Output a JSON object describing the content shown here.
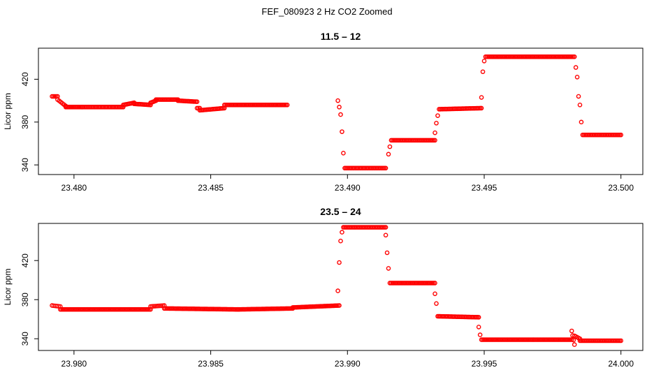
{
  "figure": {
    "title": "FEF_080923  2 Hz CO2 Zoomed"
  },
  "colors": {
    "points": "#ff0000",
    "axes": "#000000",
    "background": "#ffffff"
  },
  "chart_data": [
    {
      "type": "scatter",
      "title": "11.5 – 12",
      "xlabel": "",
      "ylabel": "Licor ppm",
      "xlim": [
        23.4787,
        23.5008
      ],
      "ylim": [
        331,
        449
      ],
      "xticks": [
        "23.480",
        "23.485",
        "23.490",
        "23.495",
        "23.500"
      ],
      "xtick_values": [
        23.48,
        23.485,
        23.49,
        23.495,
        23.5
      ],
      "yticks": [
        "340",
        "380",
        "420"
      ],
      "ytick_values": [
        340,
        380,
        420
      ],
      "grid": false,
      "legend": "none",
      "marker": "open-circle",
      "segments": [
        {
          "x0": 23.4792,
          "x1": 23.4794,
          "y0": 404,
          "y1": 404,
          "n": 5
        },
        {
          "x0": 23.4794,
          "x1": 23.4797,
          "y0": 401,
          "y1": 395,
          "n": 6
        },
        {
          "x0": 23.4797,
          "x1": 23.4803,
          "y0": 394,
          "y1": 394,
          "n": 16
        },
        {
          "x0": 23.4803,
          "x1": 23.4818,
          "y0": 394,
          "y1": 394,
          "n": 36
        },
        {
          "x0": 23.4818,
          "x1": 23.4822,
          "y0": 396,
          "y1": 398,
          "n": 10
        },
        {
          "x0": 23.4822,
          "x1": 23.4828,
          "y0": 397,
          "y1": 396,
          "n": 14
        },
        {
          "x0": 23.4828,
          "x1": 23.483,
          "y0": 398,
          "y1": 400,
          "n": 6
        },
        {
          "x0": 23.483,
          "x1": 23.4838,
          "y0": 401,
          "y1": 401,
          "n": 18
        },
        {
          "x0": 23.4838,
          "x1": 23.4845,
          "y0": 400,
          "y1": 399,
          "n": 16
        },
        {
          "x0": 23.4845,
          "x1": 23.4846,
          "y0": 393,
          "y1": 393,
          "n": 3
        },
        {
          "x0": 23.4846,
          "x1": 23.4855,
          "y0": 391,
          "y1": 393,
          "n": 22
        },
        {
          "x0": 23.4855,
          "x1": 23.4878,
          "y0": 396,
          "y1": 396,
          "n": 50
        },
        {
          "x0": 23.48965,
          "x1": 23.48965,
          "y0": 400,
          "y1": 400,
          "n": 1
        },
        {
          "x0": 23.4897,
          "x1": 23.4897,
          "y0": 394,
          "y1": 394,
          "n": 1
        },
        {
          "x0": 23.48975,
          "x1": 23.48975,
          "y0": 387,
          "y1": 387,
          "n": 1
        },
        {
          "x0": 23.4898,
          "x1": 23.4898,
          "y0": 371,
          "y1": 371,
          "n": 1
        },
        {
          "x0": 23.48985,
          "x1": 23.48985,
          "y0": 351,
          "y1": 351,
          "n": 1
        },
        {
          "x0": 23.4899,
          "x1": 23.4914,
          "y0": 337,
          "y1": 337,
          "n": 36
        },
        {
          "x0": 23.4915,
          "x1": 23.4915,
          "y0": 350,
          "y1": 350,
          "n": 1
        },
        {
          "x0": 23.49155,
          "x1": 23.49155,
          "y0": 357,
          "y1": 357,
          "n": 1
        },
        {
          "x0": 23.4916,
          "x1": 23.4932,
          "y0": 363,
          "y1": 363,
          "n": 36
        },
        {
          "x0": 23.4932,
          "x1": 23.4932,
          "y0": 370,
          "y1": 370,
          "n": 1
        },
        {
          "x0": 23.49325,
          "x1": 23.49325,
          "y0": 379,
          "y1": 379,
          "n": 1
        },
        {
          "x0": 23.4933,
          "x1": 23.4933,
          "y0": 386,
          "y1": 386,
          "n": 1
        },
        {
          "x0": 23.49335,
          "x1": 23.4949,
          "y0": 392,
          "y1": 393,
          "n": 36
        },
        {
          "x0": 23.4949,
          "x1": 23.4949,
          "y0": 403,
          "y1": 403,
          "n": 1
        },
        {
          "x0": 23.49495,
          "x1": 23.49495,
          "y0": 427,
          "y1": 427,
          "n": 1
        },
        {
          "x0": 23.495,
          "x1": 23.495,
          "y0": 437,
          "y1": 437,
          "n": 1
        },
        {
          "x0": 23.49505,
          "x1": 23.4983,
          "y0": 441,
          "y1": 441,
          "n": 70
        },
        {
          "x0": 23.49835,
          "x1": 23.49835,
          "y0": 431,
          "y1": 431,
          "n": 1
        },
        {
          "x0": 23.4984,
          "x1": 23.4984,
          "y0": 422,
          "y1": 422,
          "n": 1
        },
        {
          "x0": 23.49845,
          "x1": 23.49845,
          "y0": 404,
          "y1": 404,
          "n": 1
        },
        {
          "x0": 23.4985,
          "x1": 23.4985,
          "y0": 396,
          "y1": 396,
          "n": 1
        },
        {
          "x0": 23.49855,
          "x1": 23.49855,
          "y0": 380,
          "y1": 380,
          "n": 1
        },
        {
          "x0": 23.4986,
          "x1": 23.5,
          "y0": 368,
          "y1": 368,
          "n": 32
        }
      ]
    },
    {
      "type": "scatter",
      "title": "23.5 – 24",
      "xlabel": "",
      "ylabel": "Licor ppm",
      "xlim": [
        23.9787,
        24.0008
      ],
      "ylim": [
        328,
        458
      ],
      "xticks": [
        "23.980",
        "23.985",
        "23.990",
        "23.995",
        "24.000"
      ],
      "xtick_values": [
        23.98,
        23.985,
        23.99,
        23.995,
        24.0
      ],
      "yticks": [
        "340",
        "380",
        "420"
      ],
      "ytick_values": [
        340,
        380,
        420
      ],
      "grid": false,
      "legend": "none",
      "marker": "open-circle",
      "segments": [
        {
          "x0": 23.9792,
          "x1": 23.9795,
          "y0": 374,
          "y1": 373,
          "n": 6
        },
        {
          "x0": 23.9795,
          "x1": 23.9828,
          "y0": 370,
          "y1": 370,
          "n": 70
        },
        {
          "x0": 23.9828,
          "x1": 23.9833,
          "y0": 373,
          "y1": 374,
          "n": 10
        },
        {
          "x0": 23.9833,
          "x1": 23.986,
          "y0": 371,
          "y1": 370,
          "n": 58
        },
        {
          "x0": 23.986,
          "x1": 23.988,
          "y0": 370,
          "y1": 371,
          "n": 42
        },
        {
          "x0": 23.988,
          "x1": 23.9897,
          "y0": 372,
          "y1": 374,
          "n": 36
        },
        {
          "x0": 23.98965,
          "x1": 23.98965,
          "y0": 389,
          "y1": 389,
          "n": 1
        },
        {
          "x0": 23.9897,
          "x1": 23.9897,
          "y0": 418,
          "y1": 418,
          "n": 1
        },
        {
          "x0": 23.98975,
          "x1": 23.98975,
          "y0": 440,
          "y1": 440,
          "n": 1
        },
        {
          "x0": 23.9898,
          "x1": 23.9898,
          "y0": 449,
          "y1": 449,
          "n": 1
        },
        {
          "x0": 23.98985,
          "x1": 23.9914,
          "y0": 454,
          "y1": 454,
          "n": 36
        },
        {
          "x0": 23.9914,
          "x1": 23.9914,
          "y0": 446,
          "y1": 446,
          "n": 1
        },
        {
          "x0": 23.99145,
          "x1": 23.99145,
          "y0": 428,
          "y1": 428,
          "n": 1
        },
        {
          "x0": 23.9915,
          "x1": 23.9915,
          "y0": 412,
          "y1": 412,
          "n": 1
        },
        {
          "x0": 23.99155,
          "x1": 23.9932,
          "y0": 397,
          "y1": 397,
          "n": 36
        },
        {
          "x0": 23.9932,
          "x1": 23.9932,
          "y0": 386,
          "y1": 386,
          "n": 1
        },
        {
          "x0": 23.99325,
          "x1": 23.99325,
          "y0": 376,
          "y1": 376,
          "n": 1
        },
        {
          "x0": 23.9933,
          "x1": 23.9948,
          "y0": 363,
          "y1": 362,
          "n": 36
        },
        {
          "x0": 23.9948,
          "x1": 23.9948,
          "y0": 352,
          "y1": 352,
          "n": 1
        },
        {
          "x0": 23.99485,
          "x1": 23.99485,
          "y0": 344,
          "y1": 344,
          "n": 1
        },
        {
          "x0": 23.9949,
          "x1": 23.9982,
          "y0": 339,
          "y1": 339,
          "n": 70
        },
        {
          "x0": 23.9982,
          "x1": 23.9983,
          "y0": 348,
          "y1": 334,
          "n": 4
        },
        {
          "x0": 23.9983,
          "x1": 23.9985,
          "y0": 343,
          "y1": 340,
          "n": 5
        },
        {
          "x0": 23.9985,
          "x1": 24.0,
          "y0": 338,
          "y1": 338,
          "n": 34
        }
      ]
    }
  ]
}
